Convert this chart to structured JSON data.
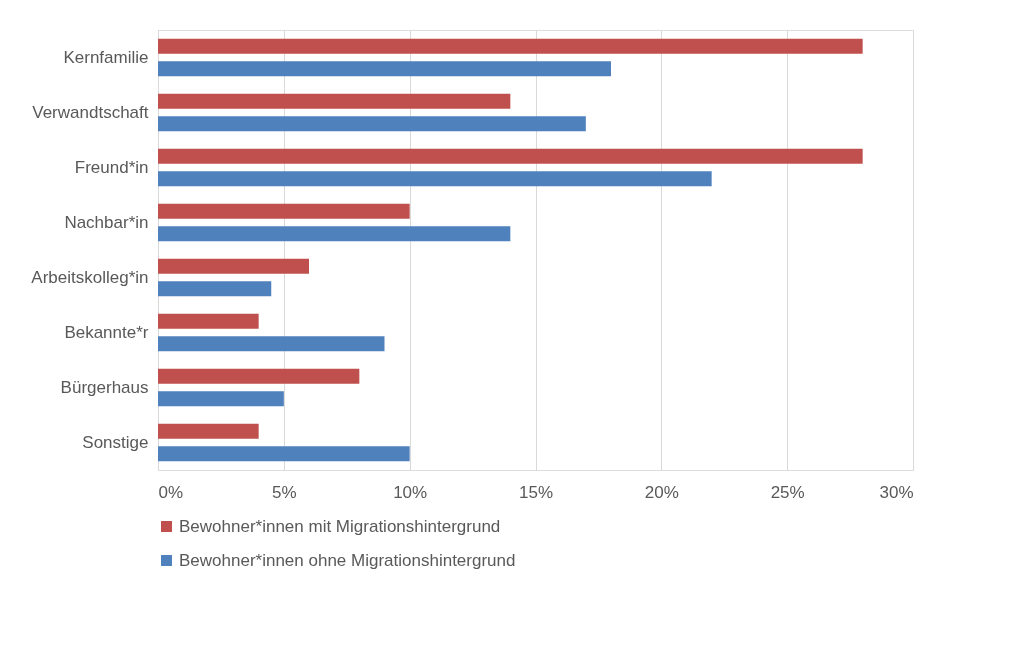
{
  "chart_data": {
    "type": "bar",
    "orientation": "horizontal",
    "categories": [
      "Kernfamilie",
      "Verwandtschaft",
      "Freund*in",
      "Nachbar*in",
      "Arbeitskolleg*in",
      "Bekannte*r",
      "Bürgerhaus",
      "Sonstige"
    ],
    "series": [
      {
        "name": "Bewohner*innen mit Migrationshintergrund",
        "color": "#c0504d",
        "values": [
          28,
          14,
          28,
          10,
          6,
          4,
          8,
          4
        ]
      },
      {
        "name": "Bewohner*innen ohne Migrationshintergrund",
        "color": "#4f81bd",
        "values": [
          18,
          17,
          22,
          14,
          4.5,
          9,
          5,
          10
        ]
      }
    ],
    "xlim": [
      0,
      30
    ],
    "xticks": [
      {
        "value": 0,
        "label": "0%"
      },
      {
        "value": 5,
        "label": "5%"
      },
      {
        "value": 10,
        "label": "10%"
      },
      {
        "value": 15,
        "label": "15%"
      },
      {
        "value": 20,
        "label": "20%"
      },
      {
        "value": 25,
        "label": "25%"
      },
      {
        "value": 30,
        "label": "30%"
      }
    ],
    "grid": "x",
    "legend": "bottom"
  }
}
